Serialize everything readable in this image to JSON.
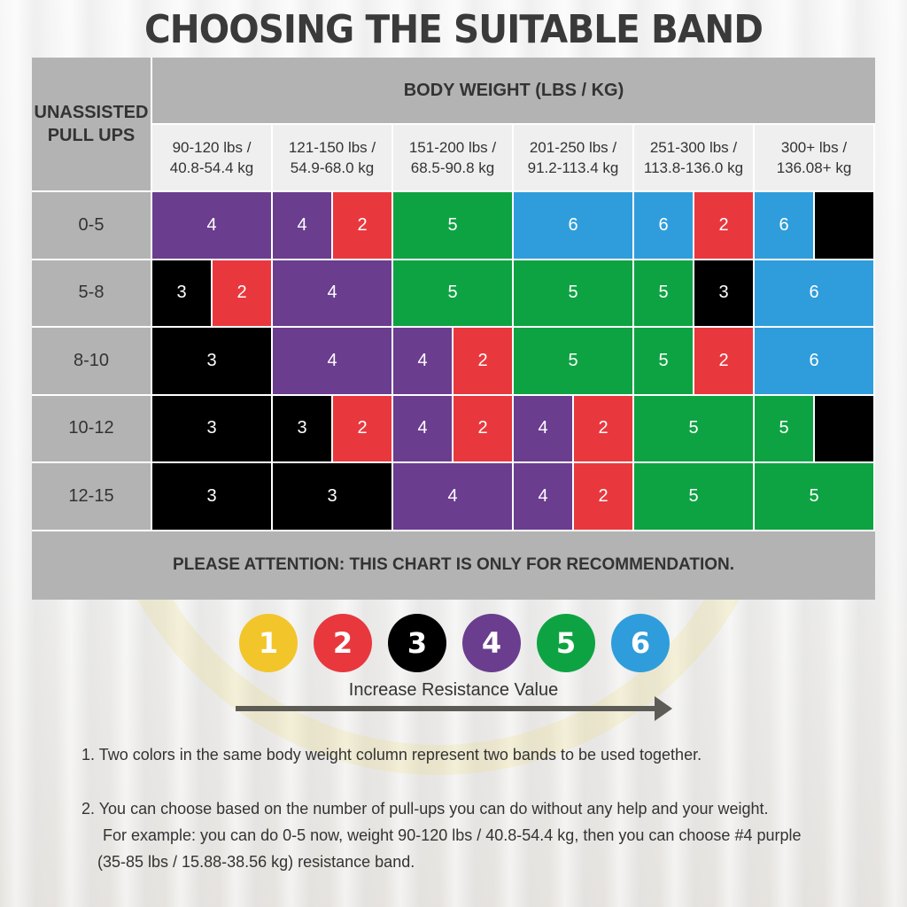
{
  "title": "CHOOSING THE SUITABLE BAND",
  "chart_data": {
    "type": "table",
    "row_header": "UNASSISTED PULL UPS",
    "column_header": "BODY WEIGHT (LBS / KG)",
    "columns": [
      {
        "line1": "90-120 lbs /",
        "line2": "40.8-54.4 kg"
      },
      {
        "line1": "121-150 lbs /",
        "line2": "54.9-68.0 kg"
      },
      {
        "line1": "151-200 lbs /",
        "line2": "68.5-90.8 kg"
      },
      {
        "line1": "201-250 lbs /",
        "line2": "91.2-113.4 kg"
      },
      {
        "line1": "251-300 lbs /",
        "line2": "113.8-136.0 kg"
      },
      {
        "line1": "300+ lbs /",
        "line2": "136.08+ kg"
      }
    ],
    "rows": [
      "0-5",
      "5-8",
      "8-10",
      "10-12",
      "12-15"
    ],
    "band_colors": {
      "1": "#f2c52b",
      "2": "#e8383d",
      "3": "#000000",
      "4": "#6a3d8f",
      "5": "#0ea342",
      "6": "#2f9ddb"
    },
    "cells": [
      [
        {
          "row": 0,
          "c0": 0,
          "c1": 1,
          "bands": [
            {
              "label": "4",
              "band": 4
            }
          ]
        }
      ],
      [
        {
          "row": 0,
          "c0": 1,
          "c1": 2,
          "bands": [
            {
              "label": "4",
              "band": 4
            },
            {
              "label": "2",
              "band": 2
            }
          ]
        }
      ],
      [
        {
          "row": 0,
          "c0": 2,
          "c1": 3,
          "bands": [
            {
              "label": "5",
              "band": 5
            }
          ]
        }
      ],
      [
        {
          "row": 0,
          "c0": 3,
          "c1": 4,
          "bands": [
            {
              "label": "6",
              "band": 6
            }
          ]
        }
      ],
      [
        {
          "row": 0,
          "c0": 4,
          "c1": 5,
          "bands": [
            {
              "label": "6",
              "band": 6
            },
            {
              "label": "2",
              "band": 2
            }
          ]
        }
      ],
      [
        {
          "row": 0,
          "c0": 5,
          "c1": 6,
          "bands": [
            {
              "label": "6",
              "band": 6
            },
            {
              "label": "",
              "band": 3
            }
          ]
        }
      ],
      [
        {
          "row": 1,
          "c0": 0,
          "c1": 1,
          "bands": [
            {
              "label": "3",
              "band": 3
            },
            {
              "label": "2",
              "band": 2
            }
          ]
        }
      ],
      [
        {
          "row": 1,
          "c0": 1,
          "c1": 2,
          "bands": [
            {
              "label": "4",
              "band": 4
            }
          ]
        }
      ],
      [
        {
          "row": 1,
          "c0": 2,
          "c1": 3,
          "bands": [
            {
              "label": "5",
              "band": 5
            }
          ]
        }
      ],
      [
        {
          "row": 1,
          "c0": 3,
          "c1": 4,
          "bands": [
            {
              "label": "5",
              "band": 5
            }
          ]
        }
      ],
      [
        {
          "row": 1,
          "c0": 4,
          "c1": 5,
          "bands": [
            {
              "label": "5",
              "band": 5
            },
            {
              "label": "3",
              "band": 3
            }
          ]
        }
      ],
      [
        {
          "row": 1,
          "c0": 5,
          "c1": 6,
          "bands": [
            {
              "label": "6",
              "band": 6
            }
          ]
        }
      ],
      [
        {
          "row": 2,
          "c0": 0,
          "c1": 1,
          "bands": [
            {
              "label": "3",
              "band": 3
            }
          ]
        }
      ],
      [
        {
          "row": 2,
          "c0": 1,
          "c1": 2,
          "bands": [
            {
              "label": "4",
              "band": 4
            }
          ]
        }
      ],
      [
        {
          "row": 2,
          "c0": 2,
          "c1": 3,
          "bands": [
            {
              "label": "4",
              "band": 4
            },
            {
              "label": "2",
              "band": 2
            }
          ]
        }
      ],
      [
        {
          "row": 2,
          "c0": 3,
          "c1": 4,
          "bands": [
            {
              "label": "5",
              "band": 5
            }
          ]
        }
      ],
      [
        {
          "row": 2,
          "c0": 4,
          "c1": 5,
          "bands": [
            {
              "label": "5",
              "band": 5
            },
            {
              "label": "2",
              "band": 2
            }
          ]
        }
      ],
      [
        {
          "row": 2,
          "c0": 5,
          "c1": 6,
          "bands": [
            {
              "label": "6",
              "band": 6
            }
          ]
        }
      ],
      [
        {
          "row": 3,
          "c0": 0,
          "c1": 1,
          "bands": [
            {
              "label": "3",
              "band": 3
            }
          ]
        }
      ],
      [
        {
          "row": 3,
          "c0": 1,
          "c1": 2,
          "bands": [
            {
              "label": "3",
              "band": 3
            },
            {
              "label": "2",
              "band": 2
            }
          ]
        }
      ],
      [
        {
          "row": 3,
          "c0": 2,
          "c1": 3,
          "bands": [
            {
              "label": "4",
              "band": 4
            },
            {
              "label": "2",
              "band": 2
            }
          ]
        }
      ],
      [
        {
          "row": 3,
          "c0": 3,
          "c1": 4,
          "bands": [
            {
              "label": "4",
              "band": 4
            },
            {
              "label": "2",
              "band": 2
            }
          ]
        }
      ],
      [
        {
          "row": 3,
          "c0": 4,
          "c1": 5,
          "bands": [
            {
              "label": "5",
              "band": 5
            }
          ]
        }
      ],
      [
        {
          "row": 3,
          "c0": 5,
          "c1": 6,
          "bands": [
            {
              "label": "5",
              "band": 5
            },
            {
              "label": "",
              "band": 3
            }
          ]
        }
      ],
      [
        {
          "row": 4,
          "c0": 0,
          "c1": 1,
          "bands": [
            {
              "label": "3",
              "band": 3
            }
          ]
        }
      ],
      [
        {
          "row": 4,
          "c0": 1,
          "c1": 2,
          "bands": [
            {
              "label": "3",
              "band": 3
            }
          ]
        }
      ],
      [
        {
          "row": 4,
          "c0": 2,
          "c1": 3,
          "bands": [
            {
              "label": "4",
              "band": 4
            }
          ]
        }
      ],
      [
        {
          "row": 4,
          "c0": 3,
          "c1": 4,
          "bands": [
            {
              "label": "4",
              "band": 4
            },
            {
              "label": "2",
              "band": 2
            }
          ]
        }
      ],
      [
        {
          "row": 4,
          "c0": 4,
          "c1": 5,
          "bands": [
            {
              "label": "5",
              "band": 5
            }
          ]
        }
      ],
      [
        {
          "row": 4,
          "c0": 5,
          "c1": 6,
          "bands": [
            {
              "label": "5",
              "band": 5
            }
          ]
        }
      ]
    ],
    "footer": "PLEASE ATTENTION: THIS CHART IS ONLY FOR RECOMMENDATION."
  },
  "legend": {
    "bands": [
      {
        "label": "1",
        "color": "#f2c52b"
      },
      {
        "label": "2",
        "color": "#e8383d"
      },
      {
        "label": "3",
        "color": "#000000"
      },
      {
        "label": "4",
        "color": "#6a3d8f"
      },
      {
        "label": "5",
        "color": "#0ea342"
      },
      {
        "label": "6",
        "color": "#2f9ddb"
      }
    ],
    "arrow_label": "Increase Resistance Value"
  },
  "notes": {
    "n1": "1. Two colors in the same body weight column represent two bands to be used together.",
    "n2a": "2. You can choose based on the number of pull-ups you can do without any help and your weight.",
    "n2b": "For example: you can do 0-5 now, weight 90-120 lbs / 40.8-54.4 kg, then you can choose #4 purple",
    "n2c": "(35-85 lbs / 15.88-38.56 kg) resistance band."
  }
}
